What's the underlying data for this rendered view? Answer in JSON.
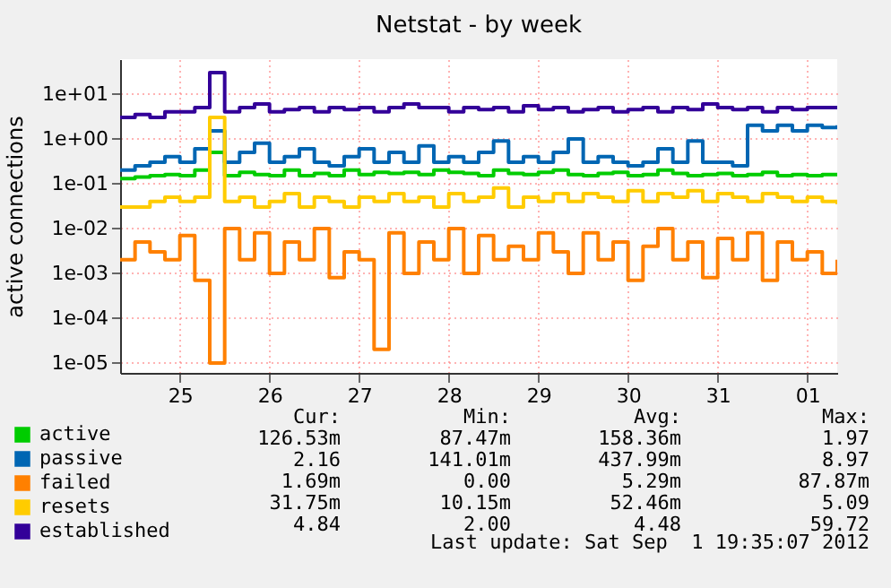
{
  "chart_data": {
    "type": "step",
    "title": "Netstat - by week",
    "ylabel": "active connections",
    "log": "y",
    "grid": true,
    "legend": "bottom",
    "x": [
      "2012-08-24T08:00",
      "2012-08-24T12:00",
      "2012-08-24T16:00",
      "2012-08-24T20:00",
      "2012-08-25T00:00",
      "2012-08-25T04:00",
      "2012-08-25T08:00",
      "2012-08-25T12:00",
      "2012-08-25T16:00",
      "2012-08-25T20:00",
      "2012-08-26T00:00",
      "2012-08-26T04:00",
      "2012-08-26T08:00",
      "2012-08-26T12:00",
      "2012-08-26T16:00",
      "2012-08-26T20:00",
      "2012-08-27T00:00",
      "2012-08-27T04:00",
      "2012-08-27T08:00",
      "2012-08-27T12:00",
      "2012-08-27T16:00",
      "2012-08-27T20:00",
      "2012-08-28T00:00",
      "2012-08-28T04:00",
      "2012-08-28T08:00",
      "2012-08-28T12:00",
      "2012-08-28T16:00",
      "2012-08-28T20:00",
      "2012-08-29T00:00",
      "2012-08-29T04:00",
      "2012-08-29T08:00",
      "2012-08-29T12:00",
      "2012-08-29T16:00",
      "2012-08-29T20:00",
      "2012-08-30T00:00",
      "2012-08-30T04:00",
      "2012-08-30T08:00",
      "2012-08-30T12:00",
      "2012-08-30T16:00",
      "2012-08-30T20:00",
      "2012-08-31T00:00",
      "2012-08-31T04:00",
      "2012-08-31T08:00",
      "2012-08-31T12:00",
      "2012-08-31T16:00",
      "2012-08-31T20:00",
      "2012-09-01T00:00",
      "2012-09-01T04:00",
      "2012-09-01T08:00"
    ],
    "xlim": [
      "2012-08-24T08:00",
      "2012-09-01T08:00"
    ],
    "xticks": [
      {
        "value": "2012-08-25",
        "label": "25"
      },
      {
        "value": "2012-08-26",
        "label": "26"
      },
      {
        "value": "2012-08-27",
        "label": "27"
      },
      {
        "value": "2012-08-28",
        "label": "28"
      },
      {
        "value": "2012-08-29",
        "label": "29"
      },
      {
        "value": "2012-08-30",
        "label": "30"
      },
      {
        "value": "2012-08-31",
        "label": "31"
      },
      {
        "value": "2012-09-01",
        "label": "01"
      }
    ],
    "ylim": [
      6e-06,
      60
    ],
    "yticks": [
      {
        "value": 1e-05,
        "label": "1e-05"
      },
      {
        "value": 0.0001,
        "label": "1e-04"
      },
      {
        "value": 0.001,
        "label": "1e-03"
      },
      {
        "value": 0.01,
        "label": "1e-02"
      },
      {
        "value": 0.1,
        "label": "1e-01"
      },
      {
        "value": 1,
        "label": "1e+00"
      },
      {
        "value": 10,
        "label": "1e+01"
      }
    ],
    "series": [
      {
        "name": "active",
        "color": "#00cc00",
        "values": [
          0.13,
          0.14,
          0.15,
          0.16,
          0.15,
          0.2,
          0.5,
          0.15,
          0.18,
          0.16,
          0.15,
          0.2,
          0.15,
          0.17,
          0.15,
          0.2,
          0.16,
          0.18,
          0.17,
          0.18,
          0.16,
          0.2,
          0.18,
          0.17,
          0.15,
          0.2,
          0.17,
          0.16,
          0.18,
          0.2,
          0.16,
          0.15,
          0.17,
          0.18,
          0.15,
          0.16,
          0.2,
          0.17,
          0.15,
          0.16,
          0.17,
          0.15,
          0.16,
          0.18,
          0.15,
          0.16,
          0.15,
          0.16,
          0.15
        ]
      },
      {
        "name": "passive",
        "color": "#0066b3",
        "values": [
          0.2,
          0.25,
          0.3,
          0.4,
          0.3,
          0.6,
          1.5,
          0.3,
          0.5,
          0.8,
          0.3,
          0.4,
          0.6,
          0.3,
          0.25,
          0.4,
          0.6,
          0.3,
          0.5,
          0.3,
          0.7,
          0.3,
          0.4,
          0.3,
          0.5,
          0.9,
          0.3,
          0.4,
          0.3,
          0.5,
          1.0,
          0.3,
          0.4,
          0.3,
          0.25,
          0.3,
          0.6,
          0.3,
          0.9,
          0.3,
          0.3,
          0.25,
          2,
          1.5,
          2,
          1.5,
          2,
          1.8,
          2
        ]
      },
      {
        "name": "failed",
        "color": "#ff8000",
        "values": [
          0.002,
          0.005,
          0.003,
          0.002,
          0.007,
          0.0007,
          1e-05,
          0.01,
          0.002,
          0.008,
          0.001,
          0.005,
          0.002,
          0.01,
          0.0008,
          0.003,
          0.002,
          2e-05,
          0.008,
          0.001,
          0.005,
          0.002,
          0.01,
          0.001,
          0.007,
          0.002,
          0.004,
          0.002,
          0.008,
          0.003,
          0.001,
          0.008,
          0.002,
          0.005,
          0.0007,
          0.004,
          0.01,
          0.002,
          0.005,
          0.0008,
          0.006,
          0.002,
          0.008,
          0.0007,
          0.005,
          0.002,
          0.003,
          0.001,
          0.002
        ]
      },
      {
        "name": "resets",
        "color": "#ffcc00",
        "values": [
          0.03,
          0.03,
          0.04,
          0.05,
          0.04,
          0.05,
          3,
          0.04,
          0.05,
          0.03,
          0.04,
          0.06,
          0.03,
          0.05,
          0.04,
          0.03,
          0.05,
          0.04,
          0.06,
          0.04,
          0.05,
          0.03,
          0.06,
          0.04,
          0.05,
          0.08,
          0.03,
          0.05,
          0.04,
          0.06,
          0.04,
          0.06,
          0.05,
          0.04,
          0.07,
          0.04,
          0.06,
          0.05,
          0.07,
          0.04,
          0.06,
          0.05,
          0.04,
          0.06,
          0.05,
          0.04,
          0.05,
          0.04,
          0.035
        ]
      },
      {
        "name": "established",
        "color": "#330099",
        "values": [
          3,
          3.5,
          3,
          4,
          4,
          5,
          30,
          4,
          5,
          6,
          4,
          4.5,
          5,
          4,
          5,
          4.5,
          5,
          4,
          5,
          6,
          5,
          5,
          4,
          5,
          4.5,
          5,
          4,
          5.5,
          4.5,
          5,
          4,
          4.5,
          5,
          4,
          4.5,
          5,
          4,
          5,
          4.5,
          6,
          5,
          4.5,
          5,
          4,
          5,
          4.5,
          5,
          5,
          5
        ]
      }
    ],
    "annotations": [
      "Cur:",
      "Min:",
      "Avg:",
      "Max:",
      "126.53m",
      "87.47m",
      "158.36m",
      "1.97",
      "2.16",
      "141.01m",
      "437.99m",
      "8.97",
      "1.69m",
      "0.00",
      "5.29m",
      "87.87m",
      "31.75m",
      "10.15m",
      "52.46m",
      "5.09",
      "4.84",
      "2.00",
      "4.48",
      "59.72",
      "Last update: Sat Sep  1 19:35:07 2012"
    ]
  }
}
